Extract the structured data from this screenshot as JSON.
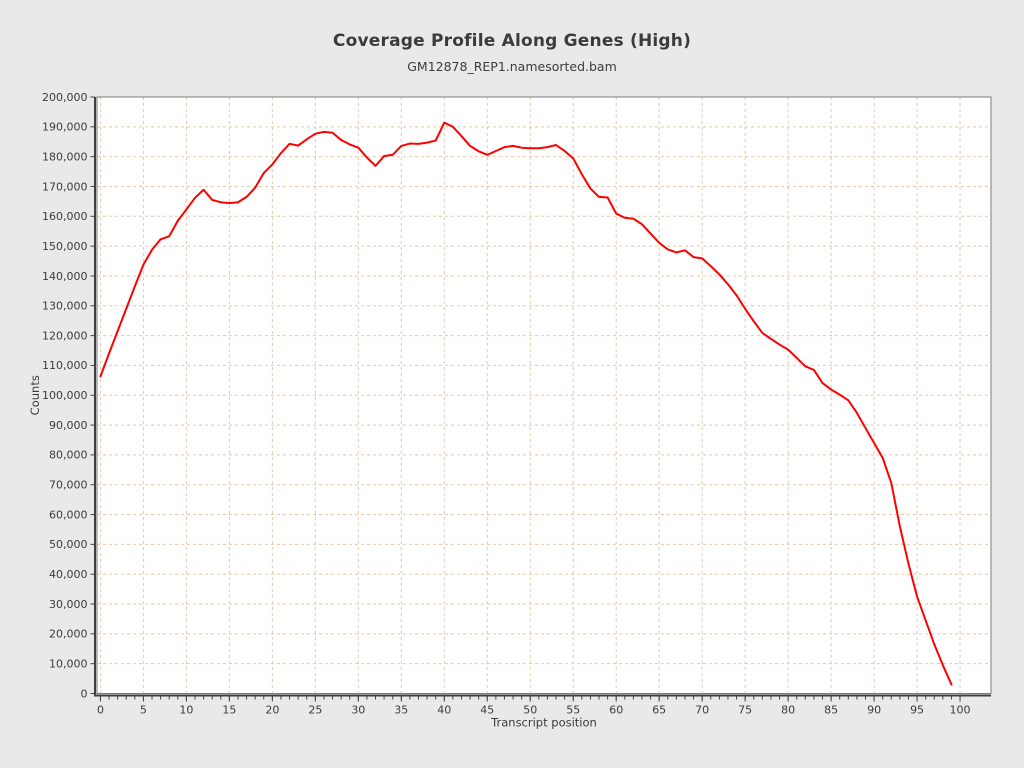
{
  "chart_data": {
    "type": "line",
    "title": "Coverage Profile Along Genes (High)",
    "subtitle": "GM12878_REP1.namesorted.bam",
    "xlabel": "Transcript position",
    "ylabel": "Counts",
    "xlim": [
      -0.4,
      103.6
    ],
    "ylim": [
      0,
      200000
    ],
    "x_major_ticks": [
      0,
      5,
      10,
      15,
      20,
      25,
      30,
      35,
      40,
      45,
      50,
      55,
      60,
      65,
      70,
      75,
      80,
      85,
      90,
      95,
      100
    ],
    "x_minor_tick_step": 1,
    "y_major_ticks": [
      0,
      10000,
      20000,
      30000,
      40000,
      50000,
      60000,
      70000,
      80000,
      90000,
      100000,
      110000,
      120000,
      130000,
      140000,
      150000,
      160000,
      170000,
      180000,
      190000,
      200000
    ],
    "grid": {
      "show": true,
      "style": "dashed",
      "x_step": 5,
      "y_step": 10000
    },
    "legend": "none",
    "series": [
      {
        "name": "GM12878_REP1.namesorted.bam",
        "color": "#ff0000",
        "x_start": 0,
        "x_step": 1,
        "values": [
          106300,
          114000,
          121500,
          129000,
          136500,
          143800,
          148800,
          152300,
          153300,
          158500,
          162300,
          166200,
          168900,
          165500,
          164700,
          164400,
          164700,
          166500,
          169600,
          174500,
          177400,
          181200,
          184300,
          183700,
          185800,
          187700,
          188300,
          188000,
          185600,
          184100,
          183000,
          179700,
          176900,
          180200,
          180600,
          183600,
          184400,
          184300,
          184700,
          185400,
          191400,
          190000,
          186900,
          183600,
          181800,
          180600,
          181900,
          183200,
          183600,
          183000,
          182800,
          182800,
          183200,
          183900,
          181900,
          179400,
          174100,
          169300,
          166500,
          166300,
          160900,
          159500,
          159200,
          157300,
          154200,
          151100,
          148900,
          147900,
          148600,
          146300,
          145900,
          143300,
          140500,
          137200,
          133500,
          129000,
          124800,
          120900,
          118900,
          117000,
          115300,
          112500,
          109700,
          108500,
          104100,
          101900,
          100200,
          98300,
          94100,
          89000,
          84000,
          79000,
          70600,
          56000,
          43500,
          32500,
          24500,
          16500,
          9500,
          3000
        ]
      }
    ]
  },
  "style": {
    "page_bg": "#e9e9e9",
    "plot_bg": "#ffffff",
    "grid_color": "#f2c59c",
    "plot_border_color": "#7a7a7a",
    "axis_color": "#3f3f3f",
    "tick_color": "#444444",
    "text_color": "#3c3c3c",
    "title_color": "#3b3b3b",
    "line_width": 2
  }
}
